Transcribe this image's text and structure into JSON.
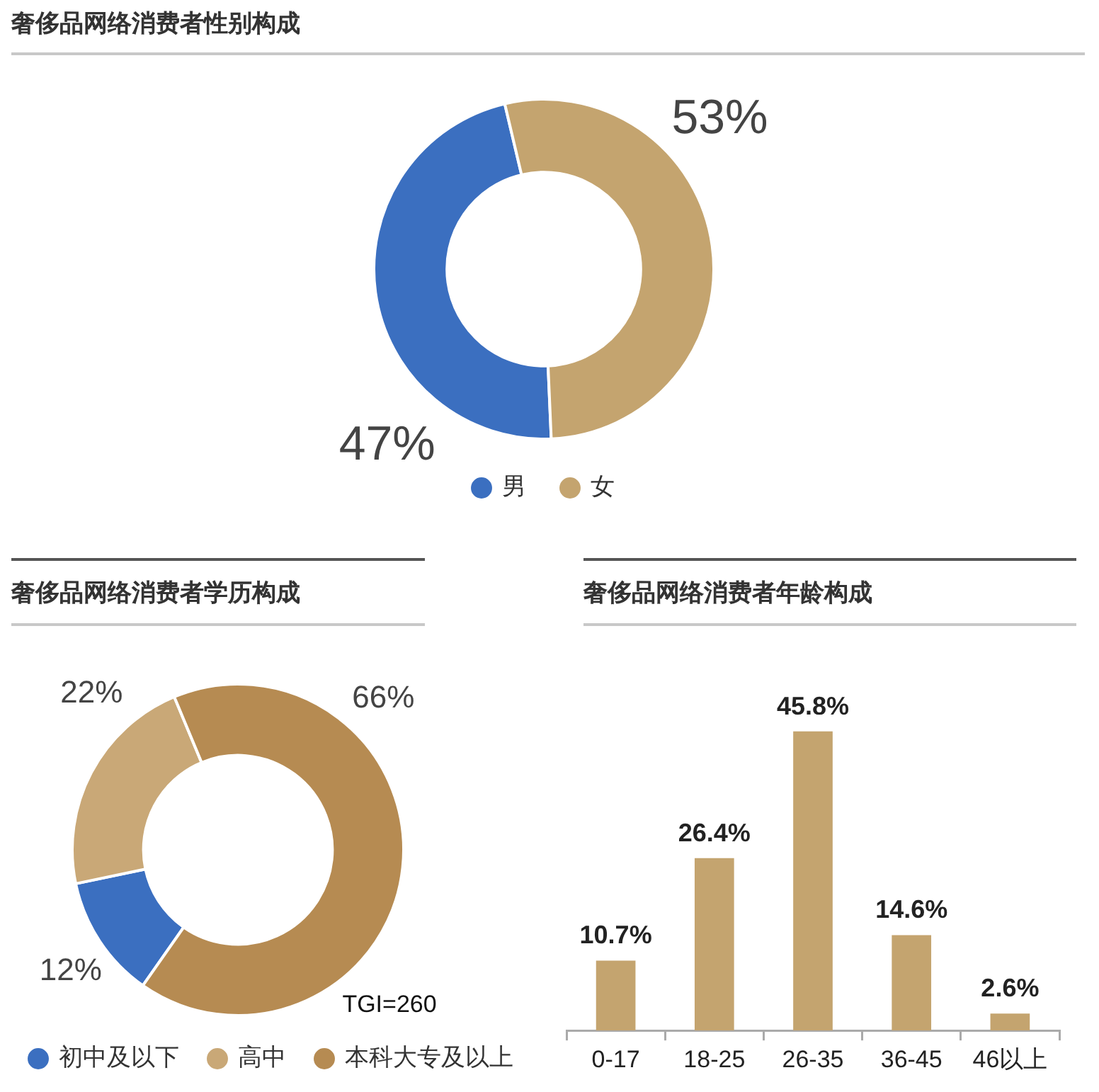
{
  "chart_data": [
    {
      "type": "donut",
      "title": "奢侈品网络消费者性别构成",
      "categories": [
        "男",
        "女"
      ],
      "values": [
        47,
        53
      ],
      "colors": [
        "#3b6fc0",
        "#c4a46f"
      ],
      "value_labels": [
        "47%",
        "53%"
      ],
      "legend": "bottom"
    },
    {
      "type": "donut",
      "title": "奢侈品网络消费者学历构成",
      "categories": [
        "初中及以下",
        "高中",
        "本科大专及以上"
      ],
      "values": [
        12,
        22,
        66
      ],
      "colors": [
        "#3b6fc0",
        "#c9a877",
        "#b68b52"
      ],
      "value_labels": [
        "12%",
        "22%",
        "66%"
      ],
      "legend": "bottom",
      "annotations": [
        "TGI=260"
      ]
    },
    {
      "type": "bar",
      "title": "奢侈品网络消费者年龄构成",
      "categories": [
        "0-17",
        "18-25",
        "26-35",
        "36-45",
        "46以上"
      ],
      "values": [
        10.7,
        26.4,
        45.8,
        14.6,
        2.6
      ],
      "color": "#c4a46f",
      "value_labels": [
        "10.7%",
        "26.4%",
        "45.8%",
        "14.6%",
        "2.6%"
      ],
      "tick_labels": "x"
    }
  ]
}
